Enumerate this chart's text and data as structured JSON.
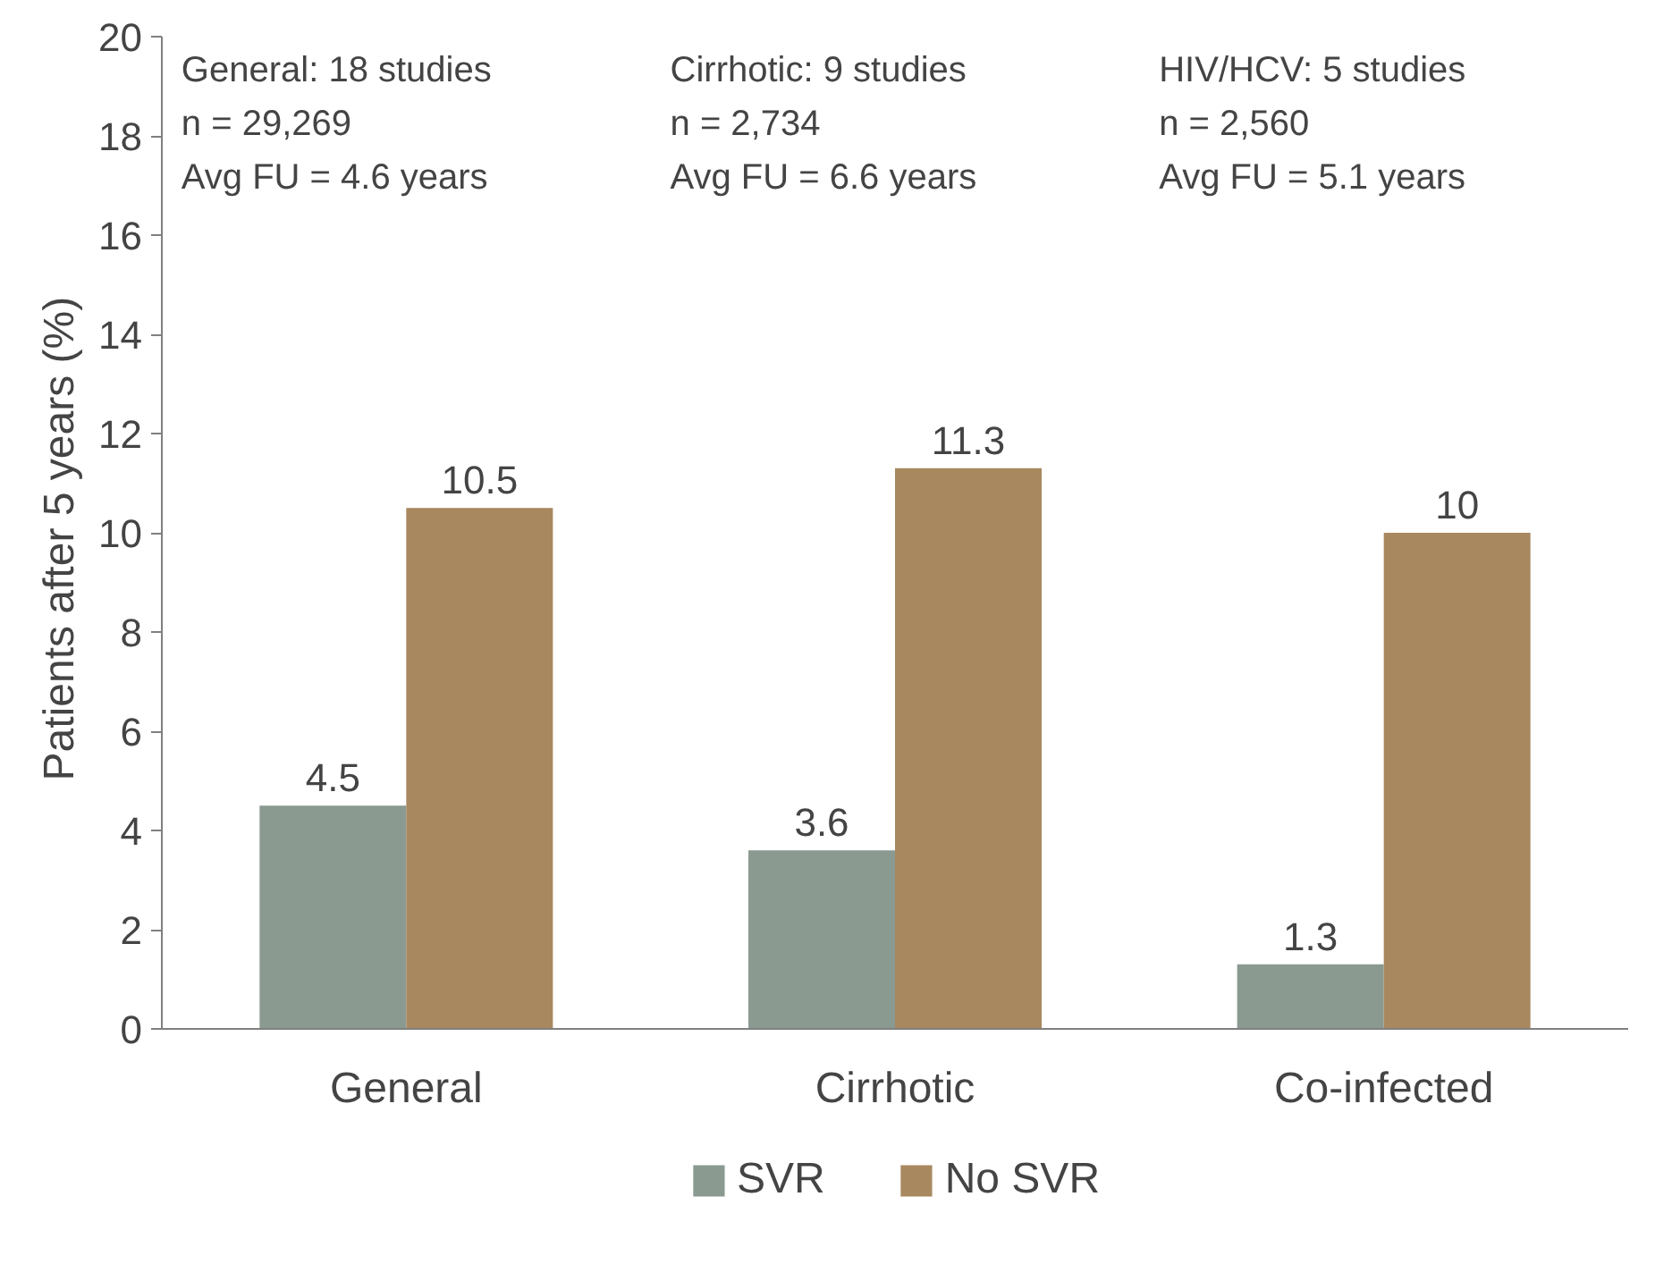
{
  "chart_data": {
    "type": "bar",
    "ylabel": "Patients after 5 years  (%)",
    "categories": [
      "General",
      "Cirrhotic",
      "Co-infected"
    ],
    "series": [
      {
        "name": "SVR",
        "color": "#8a9a91",
        "values": [
          4.5,
          3.6,
          1.3
        ]
      },
      {
        "name": "No SVR",
        "color": "#a8885f",
        "values": [
          10.5,
          11.3,
          10
        ]
      }
    ],
    "ylim": [
      0,
      20
    ],
    "yticks": [
      0,
      2,
      4,
      6,
      8,
      10,
      12,
      14,
      16,
      18,
      20
    ],
    "data_labels": true,
    "grid": false,
    "legend": "bottom",
    "annotations": [
      "General:  18 studies\nn = 29,269\nAvg FU = 4.6 years",
      "Cirrhotic: 9 studies\nn = 2,734\nAvg FU = 6.6 years",
      "HIV/HCV: 5 studies\nn = 2,560\nAvg FU = 5.1 years"
    ]
  }
}
